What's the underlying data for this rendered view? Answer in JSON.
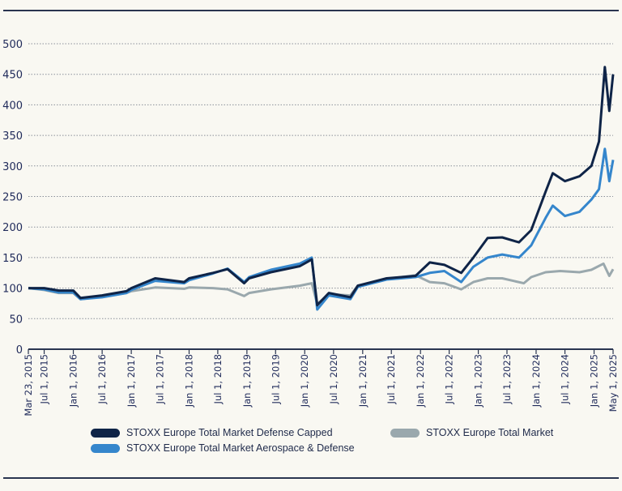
{
  "chart_data": {
    "type": "line",
    "title": "",
    "xlabel": "",
    "ylabel": "",
    "ylim": [
      0,
      500
    ],
    "yticks": [
      0,
      50,
      100,
      150,
      200,
      250,
      300,
      350,
      400,
      450,
      500
    ],
    "grid": "horizontal dotted",
    "xlim": [
      "2015-03-23",
      "2025-05-01"
    ],
    "xticks": [
      {
        "date": "2015-03-23",
        "label": "Mar 23, 2015"
      },
      {
        "date": "2015-07-01",
        "label": "Jul 1, 2015"
      },
      {
        "date": "2016-01-01",
        "label": "Jan 1, 2016"
      },
      {
        "date": "2016-07-01",
        "label": "Jul 1, 2016"
      },
      {
        "date": "2017-01-01",
        "label": "Jan 1, 2017"
      },
      {
        "date": "2017-07-01",
        "label": "Jul 1, 2017"
      },
      {
        "date": "2018-01-01",
        "label": "Jan 1, 2018"
      },
      {
        "date": "2018-07-01",
        "label": "Jul 1, 2018"
      },
      {
        "date": "2019-01-01",
        "label": "Jan 1, 2019"
      },
      {
        "date": "2019-07-01",
        "label": "Jul 1, 2019"
      },
      {
        "date": "2020-01-01",
        "label": "Jan 1, 2020"
      },
      {
        "date": "2020-07-01",
        "label": "Jul 1, 2020"
      },
      {
        "date": "2021-01-01",
        "label": "Jan 1, 2021"
      },
      {
        "date": "2021-07-01",
        "label": "Jul 1, 2021"
      },
      {
        "date": "2022-01-01",
        "label": "Jan 1, 2022"
      },
      {
        "date": "2022-07-01",
        "label": "Jul 1, 2022"
      },
      {
        "date": "2023-01-01",
        "label": "Jan 1, 2023"
      },
      {
        "date": "2023-07-01",
        "label": "Jul 1, 2023"
      },
      {
        "date": "2024-01-01",
        "label": "Jan 1, 2024"
      },
      {
        "date": "2024-07-01",
        "label": "Jul 1, 2024"
      },
      {
        "date": "2025-01-01",
        "label": "Jan 1, 2025"
      },
      {
        "date": "2025-05-01",
        "label": "May 1, 2025"
      }
    ],
    "legend_position": "bottom",
    "series": [
      {
        "name": "STOXX Europe Total Market Defense Capped",
        "color": "#0f2447",
        "points": [
          [
            "2015-03-23",
            100
          ],
          [
            "2015-07-01",
            100
          ],
          [
            "2015-10-01",
            96
          ],
          [
            "2016-01-01",
            96
          ],
          [
            "2016-02-15",
            84
          ],
          [
            "2016-07-01",
            88
          ],
          [
            "2016-12-01",
            95
          ],
          [
            "2017-01-01",
            100
          ],
          [
            "2017-06-01",
            116
          ],
          [
            "2017-12-01",
            110
          ],
          [
            "2018-01-01",
            116
          ],
          [
            "2018-06-01",
            125
          ],
          [
            "2018-09-01",
            131
          ],
          [
            "2018-12-15",
            108
          ],
          [
            "2019-01-15",
            116
          ],
          [
            "2019-06-01",
            126
          ],
          [
            "2019-12-01",
            136
          ],
          [
            "2020-02-15",
            147
          ],
          [
            "2020-03-20",
            72
          ],
          [
            "2020-06-01",
            92
          ],
          [
            "2020-10-15",
            85
          ],
          [
            "2020-12-01",
            104
          ],
          [
            "2021-06-01",
            116
          ],
          [
            "2021-12-01",
            120
          ],
          [
            "2022-03-01",
            142
          ],
          [
            "2022-06-01",
            138
          ],
          [
            "2022-09-15",
            125
          ],
          [
            "2022-12-01",
            150
          ],
          [
            "2023-03-01",
            182
          ],
          [
            "2023-06-01",
            183
          ],
          [
            "2023-09-15",
            175
          ],
          [
            "2023-12-01",
            195
          ],
          [
            "2024-03-01",
            258
          ],
          [
            "2024-04-15",
            288
          ],
          [
            "2024-07-01",
            275
          ],
          [
            "2024-10-01",
            283
          ],
          [
            "2024-12-15",
            300
          ],
          [
            "2025-02-01",
            340
          ],
          [
            "2025-03-10",
            462
          ],
          [
            "2025-04-07",
            390
          ],
          [
            "2025-05-01",
            450
          ]
        ]
      },
      {
        "name": "STOXX Europe Total Market Aerospace & Defense",
        "color": "#3586cc",
        "points": [
          [
            "2015-03-23",
            100
          ],
          [
            "2015-07-01",
            98
          ],
          [
            "2015-10-01",
            93
          ],
          [
            "2016-01-01",
            93
          ],
          [
            "2016-02-15",
            82
          ],
          [
            "2016-07-01",
            85
          ],
          [
            "2016-12-01",
            92
          ],
          [
            "2017-01-01",
            97
          ],
          [
            "2017-06-01",
            112
          ],
          [
            "2017-12-01",
            108
          ],
          [
            "2018-01-01",
            113
          ],
          [
            "2018-06-01",
            124
          ],
          [
            "2018-09-01",
            132
          ],
          [
            "2018-12-15",
            110
          ],
          [
            "2019-01-15",
            118
          ],
          [
            "2019-06-01",
            130
          ],
          [
            "2019-12-01",
            140
          ],
          [
            "2020-02-15",
            150
          ],
          [
            "2020-03-20",
            65
          ],
          [
            "2020-06-01",
            88
          ],
          [
            "2020-10-15",
            82
          ],
          [
            "2020-12-01",
            102
          ],
          [
            "2021-06-01",
            114
          ],
          [
            "2021-12-01",
            118
          ],
          [
            "2022-03-01",
            125
          ],
          [
            "2022-06-01",
            128
          ],
          [
            "2022-09-15",
            110
          ],
          [
            "2022-12-01",
            135
          ],
          [
            "2023-03-01",
            150
          ],
          [
            "2023-06-01",
            155
          ],
          [
            "2023-09-15",
            150
          ],
          [
            "2023-12-01",
            170
          ],
          [
            "2024-03-01",
            215
          ],
          [
            "2024-04-15",
            235
          ],
          [
            "2024-07-01",
            218
          ],
          [
            "2024-10-01",
            225
          ],
          [
            "2024-12-15",
            245
          ],
          [
            "2025-02-01",
            262
          ],
          [
            "2025-03-10",
            328
          ],
          [
            "2025-04-07",
            275
          ],
          [
            "2025-05-01",
            310
          ]
        ]
      },
      {
        "name": "STOXX Europe Total Market",
        "color": "#9aa8ad",
        "points": [
          [
            "2015-03-23",
            100
          ],
          [
            "2015-07-01",
            97
          ],
          [
            "2015-10-01",
            92
          ],
          [
            "2016-01-01",
            92
          ],
          [
            "2016-02-15",
            82
          ],
          [
            "2016-07-01",
            86
          ],
          [
            "2016-12-01",
            92
          ],
          [
            "2017-01-01",
            95
          ],
          [
            "2017-06-01",
            101
          ],
          [
            "2017-12-01",
            99
          ],
          [
            "2018-01-01",
            101
          ],
          [
            "2018-06-01",
            100
          ],
          [
            "2018-09-01",
            98
          ],
          [
            "2018-12-15",
            87
          ],
          [
            "2019-01-15",
            92
          ],
          [
            "2019-06-01",
            98
          ],
          [
            "2019-12-01",
            104
          ],
          [
            "2020-02-15",
            108
          ],
          [
            "2020-03-20",
            74
          ],
          [
            "2020-06-01",
            90
          ],
          [
            "2020-10-15",
            88
          ],
          [
            "2020-12-01",
            104
          ],
          [
            "2021-06-01",
            115
          ],
          [
            "2021-12-01",
            121
          ],
          [
            "2022-03-01",
            110
          ],
          [
            "2022-06-01",
            108
          ],
          [
            "2022-09-15",
            98
          ],
          [
            "2022-12-01",
            110
          ],
          [
            "2023-03-01",
            116
          ],
          [
            "2023-06-01",
            116
          ],
          [
            "2023-10-15",
            108
          ],
          [
            "2023-12-01",
            118
          ],
          [
            "2024-03-01",
            126
          ],
          [
            "2024-06-01",
            128
          ],
          [
            "2024-10-01",
            126
          ],
          [
            "2024-12-15",
            130
          ],
          [
            "2025-03-01",
            140
          ],
          [
            "2025-04-07",
            120
          ],
          [
            "2025-05-01",
            131
          ]
        ]
      }
    ]
  }
}
